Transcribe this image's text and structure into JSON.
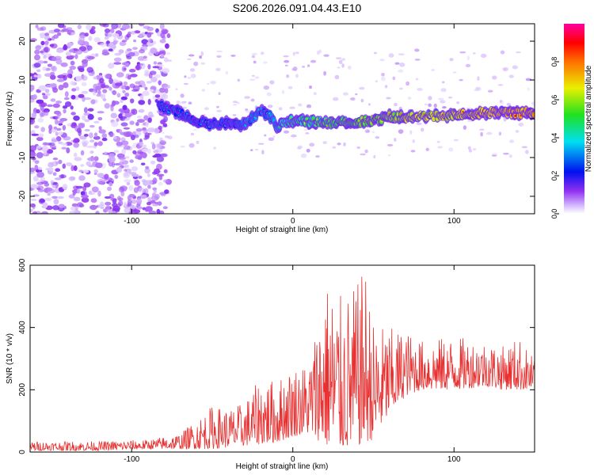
{
  "figure_title": "S206.2026.091.04.43.E10",
  "chart_data": [
    {
      "type": "heatmap",
      "title": "",
      "xlabel": "Height of straight line (km)",
      "ylabel": "Frequency (Hz)",
      "xlim": [
        -163,
        150
      ],
      "ylim": [
        -24.5,
        24.5
      ],
      "xticks": [
        -100,
        0,
        100
      ],
      "yticks": [
        -20,
        -10,
        0,
        10,
        20
      ],
      "colorbar": {
        "label": "Normalized spectral amplitude",
        "range": [
          0,
          1
        ],
        "ticks": [
          0.0,
          0.2,
          0.4,
          0.6,
          0.8
        ],
        "tick_labels": [
          "0.0",
          "0.2",
          "0.4",
          "0.6",
          "0.8"
        ],
        "colormap": [
          "#ffffff",
          "#c8a8f8",
          "#7a1ef0",
          "#0a10e8",
          "#00e8e8",
          "#30e030",
          "#ffff00",
          "#ff8000",
          "#ff0000",
          "#ff00a0"
        ]
      },
      "signal_track": {
        "description_free": true,
        "x": [
          -83,
          -70,
          -60,
          -50,
          -40,
          -30,
          -20,
          -15,
          -10,
          0,
          20,
          40,
          60,
          80,
          100,
          120,
          150
        ],
        "freq": [
          3.5,
          1.5,
          -0.5,
          -1.5,
          -1.0,
          -1.5,
          2.0,
          1.0,
          -2.0,
          -0.5,
          -1.0,
          -1.0,
          0.5,
          0.5,
          1.0,
          1.5,
          1.5
        ],
        "amplitude": [
          0.35,
          0.35,
          0.35,
          0.35,
          0.35,
          0.4,
          0.4,
          0.4,
          0.45,
          0.55,
          0.6,
          0.65,
          0.7,
          0.75,
          0.75,
          0.8,
          0.85
        ]
      },
      "noise_region_x": [
        -163,
        -83
      ]
    },
    {
      "type": "line",
      "title": "",
      "xlabel": "Height of straight line (km)",
      "ylabel": "SNR (10 * v/v)",
      "xlim": [
        -163,
        150
      ],
      "ylim": [
        0,
        600
      ],
      "xticks": [
        -100,
        0,
        100
      ],
      "yticks": [
        0,
        200,
        400,
        600
      ],
      "series": [
        {
          "name": "SNR",
          "color": "#e83030",
          "envelope_x": [
            -163,
            -120,
            -90,
            -70,
            -50,
            -40,
            -30,
            -20,
            -10,
            0,
            10,
            20,
            30,
            40,
            45,
            50,
            60,
            70,
            80,
            100,
            120,
            130,
            140,
            150
          ],
          "envelope_low": [
            5,
            5,
            10,
            10,
            10,
            15,
            20,
            25,
            30,
            50,
            60,
            20,
            10,
            20,
            30,
            40,
            120,
            180,
            200,
            200,
            210,
            200,
            200,
            200
          ],
          "envelope_high": [
            35,
            35,
            40,
            60,
            150,
            140,
            160,
            240,
            230,
            280,
            290,
            560,
            500,
            540,
            600,
            420,
            400,
            390,
            360,
            370,
            360,
            340,
            370,
            300
          ]
        }
      ]
    }
  ]
}
